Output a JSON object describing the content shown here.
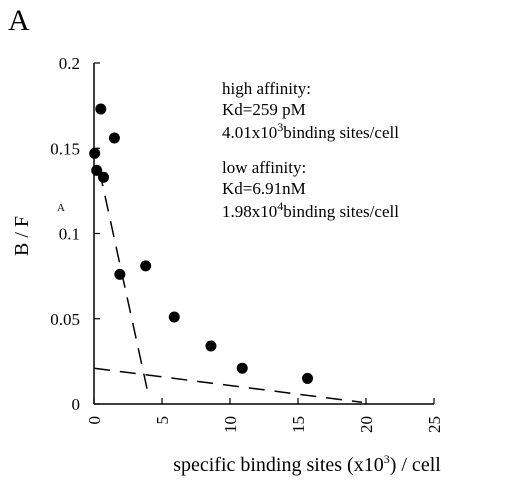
{
  "chart_data": {
    "type": "scatter",
    "panel_label": "A",
    "title": "",
    "xlabel_parts": [
      "specific binding sites (x10",
      "3",
      ") / cell"
    ],
    "ylabel": "B / F",
    "xlim": [
      0,
      25
    ],
    "ylim": [
      0,
      0.2
    ],
    "x_ticks": [
      0,
      5,
      10,
      15,
      20,
      25
    ],
    "y_ticks": [
      0,
      0.05,
      0.1,
      0.15,
      0.2
    ],
    "x_tick_labels": [
      "0",
      "5",
      "10",
      "15",
      "20",
      "25"
    ],
    "y_tick_labels": [
      "0",
      "0.05",
      "0.1",
      "0.15",
      "0.2"
    ],
    "grid": false,
    "points": [
      {
        "x": 0.5,
        "y": 0.173
      },
      {
        "x": 1.5,
        "y": 0.156
      },
      {
        "x": 0.05,
        "y": 0.147
      },
      {
        "x": 0.2,
        "y": 0.137
      },
      {
        "x": 0.7,
        "y": 0.133
      },
      {
        "x": 1.9,
        "y": 0.076
      },
      {
        "x": 3.8,
        "y": 0.081
      },
      {
        "x": 5.9,
        "y": 0.051
      },
      {
        "x": 8.6,
        "y": 0.034
      },
      {
        "x": 10.9,
        "y": 0.021
      },
      {
        "x": 15.7,
        "y": 0.015
      }
    ],
    "fit_lines": [
      {
        "name": "high affinity fit",
        "x": [
          0.4,
          3.9
        ],
        "y": [
          0.137,
          0.009
        ]
      },
      {
        "name": "low affinity fit",
        "x": [
          0,
          19.7
        ],
        "y": [
          0.021,
          0.001
        ]
      }
    ],
    "annotations": {
      "high_heading": "high affinity:",
      "high_kd": "Kd=259 pM",
      "high_sites_base": "4.01x10",
      "high_sites_exp": "3",
      "high_sites_suffix": "binding sites/cell",
      "low_heading": "low affinity:",
      "low_kd": "Kd=6.91nM",
      "low_sites_base": "1.98x10",
      "low_sites_exp": "4",
      "low_sites_suffix": "binding sites/cell",
      "stray_mark": "A"
    }
  }
}
